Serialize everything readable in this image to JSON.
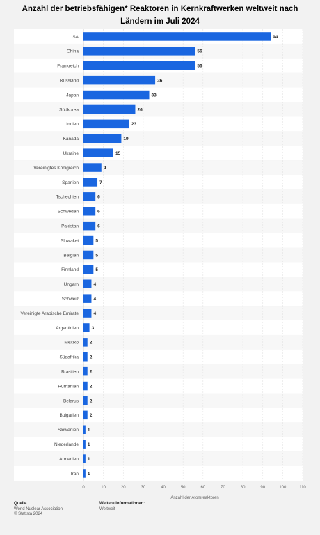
{
  "chart_data": {
    "type": "bar",
    "orientation": "horizontal",
    "title": "Anzahl der betriebsfähigen* Reaktoren in Kernkraftwerken weltweit nach Ländern im Juli 2024",
    "xlabel": "Anzahl der Atomreaktoren",
    "ylabel": "",
    "xlim": [
      0,
      110
    ],
    "xticks": [
      0,
      10,
      20,
      30,
      40,
      50,
      60,
      70,
      80,
      90,
      100,
      110
    ],
    "grid": true,
    "bar_color": "#1a66e0",
    "categories": [
      "USA",
      "China",
      "Frankreich",
      "Russland",
      "Japan",
      "Südkorea",
      "Indien",
      "Kanada",
      "Ukraine",
      "Vereinigtes Königreich",
      "Spanien",
      "Tschechien",
      "Schweden",
      "Pakistan",
      "Slowakei",
      "Belgien",
      "Finnland",
      "Ungarn",
      "Schweiz",
      "Vereinigte Arabische Emirate",
      "Argentinien",
      "Mexiko",
      "Südafrika",
      "Brasilien",
      "Rumänien",
      "Belarus",
      "Bulgarien",
      "Slowenien",
      "Niederlande",
      "Armenien",
      "Iran"
    ],
    "values": [
      94,
      56,
      56,
      36,
      33,
      26,
      23,
      19,
      15,
      9,
      7,
      6,
      6,
      6,
      5,
      5,
      5,
      4,
      4,
      4,
      3,
      2,
      2,
      2,
      2,
      2,
      2,
      1,
      1,
      1,
      1
    ]
  },
  "footer": {
    "source_heading": "Quelle",
    "source_lines": [
      "World Nuclear Association",
      "© Statista 2024"
    ],
    "info_heading": "Weitere Informationen:",
    "info_lines": [
      "Weltweit"
    ]
  }
}
